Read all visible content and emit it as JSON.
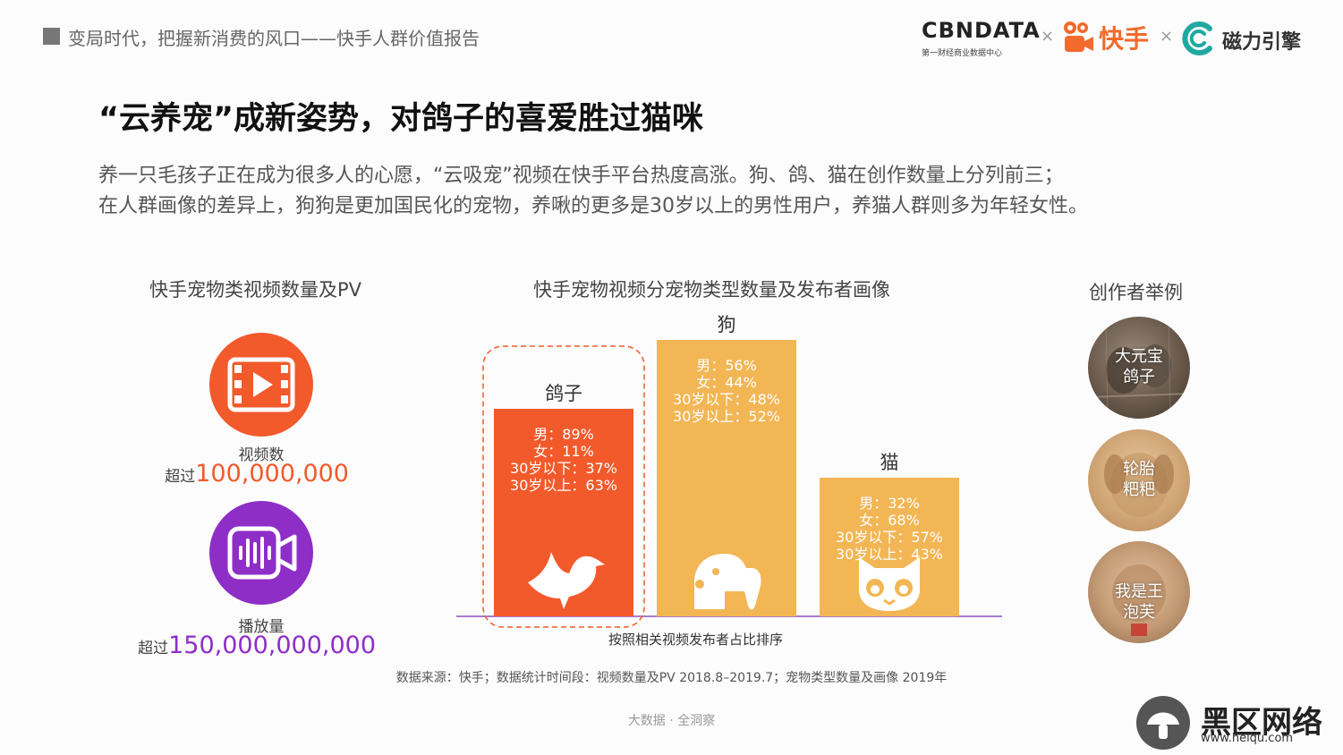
{
  "header": {
    "report_title": "变局时代，把握新消费的风口——快手人群价值报告",
    "brand_cbn": "CBNDATA",
    "brand_cbn_sub": "第一财经商业数据中心",
    "times1": "×",
    "brand_kuaishou": "快手",
    "times2": "×",
    "brand_cili": "磁力引擎"
  },
  "title": "“云养宠”成新姿势，对鸽子的喜爱胜过猫咪",
  "subtitle_lines": [
    "养一只毛孩子正在成为很多人的心愿，“云吸宠”视频在快手平台热度高涨。狗、鸽、猫在创作数量上分列前三；",
    "在人群画像的差异上，狗狗是更加国民化的宠物，养啾的更多是30岁以上的男性用户，养猫人群则多为年轻女性。"
  ],
  "left_section": {
    "title": "快手宠物类视频数量及PV",
    "stats": [
      {
        "label": "视频数",
        "prefix": "超过",
        "value": "100,000,000",
        "color": "#f25a2b",
        "icon": "video-play-icon"
      },
      {
        "label": "播放量",
        "prefix": "超过",
        "value": "150,000,000,000",
        "color": "#8e2ec7",
        "icon": "audio-camera-icon"
      }
    ]
  },
  "chart_data": {
    "type": "bar",
    "title": "快手宠物视频分宠物类型数量及发布者画像",
    "xlabel": "按照相关视频发布者占比排序",
    "categories": [
      "鸽子",
      "狗",
      "猫"
    ],
    "values": [
      3,
      4,
      2
    ],
    "note": "bars ranked by publisher share; no numeric axis shown",
    "colors": [
      "#f25a2b",
      "#f3b655",
      "#f3b655"
    ],
    "highlight": "鸽子",
    "icons": [
      "dove-icon",
      "dog-icon",
      "cat-icon"
    ],
    "annotations": [
      [
        "男：89%",
        "女：11%",
        "30岁以下：37%",
        "30岁以上：63%"
      ],
      [
        "男：56%",
        "女：44%",
        "30岁以下：48%",
        "30岁以上：52%"
      ],
      [
        "男：32%",
        "女：68%",
        "30岁以下：57%",
        "30岁以上：43%"
      ]
    ]
  },
  "right_section": {
    "title": "创作者举例",
    "creators": [
      {
        "line1": "大元宝",
        "line2": "鸽子"
      },
      {
        "line1": "轮胎",
        "line2": "粑粑"
      },
      {
        "line1": "我是王",
        "line2": "泡芙"
      }
    ]
  },
  "footer": {
    "source": "数据来源：快手；数据统计时间段：视频数量及PV 2018.8–2019.7；宠物类型数量及画像 2019年",
    "tagline": "大数据 · 全洞察"
  },
  "watermark": {
    "text": "黑区网络",
    "url": "www.heiqu.com"
  }
}
